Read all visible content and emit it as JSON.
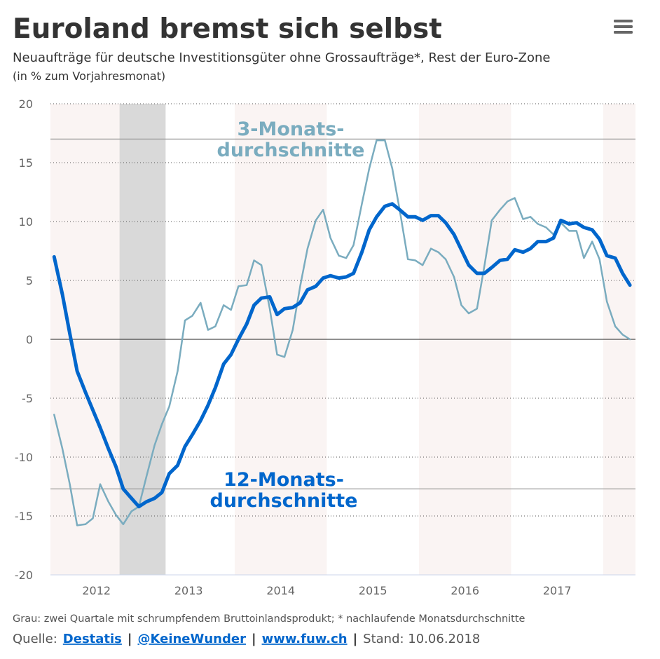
{
  "chart_data": {
    "type": "line",
    "title": "Euroland bremst sich selbst",
    "subtitle": "Neuaufträge für deutsche Investitionsgüter ohne Grossaufträge*, Rest der Euro-Zone",
    "y_label": "(in % zum Vorjahresmonat)",
    "x": [
      2012.04,
      2012.13,
      2012.21,
      2012.29,
      2012.38,
      2012.46,
      2012.54,
      2012.63,
      2012.71,
      2012.79,
      2012.88,
      2012.96,
      2013.04,
      2013.13,
      2013.21,
      2013.29,
      2013.38,
      2013.46,
      2013.54,
      2013.63,
      2013.71,
      2013.79,
      2013.88,
      2013.96,
      2014.04,
      2014.13,
      2014.21,
      2014.29,
      2014.38,
      2014.46,
      2014.54,
      2014.63,
      2014.71,
      2014.79,
      2014.88,
      2014.96,
      2015.04,
      2015.13,
      2015.21,
      2015.29,
      2015.38,
      2015.46,
      2015.54,
      2015.63,
      2015.71,
      2015.79,
      2015.88,
      2015.96,
      2016.04,
      2016.13,
      2016.21,
      2016.29,
      2016.38,
      2016.46,
      2016.54,
      2016.63,
      2016.71,
      2016.79,
      2016.88,
      2016.96,
      2017.04,
      2017.13,
      2017.21,
      2017.29,
      2017.38,
      2017.46,
      2017.54,
      2017.63,
      2017.71,
      2017.79,
      2017.88,
      2017.96,
      2018.04,
      2018.13,
      2018.21,
      2018.29
    ],
    "series": [
      {
        "label_lines": [
          "3-Monats-",
          "durchschnitte"
        ],
        "color": "#7aacbf",
        "width": 2.5,
        "values": [
          -6.4,
          -9.3,
          -12.3,
          -15.8,
          -15.7,
          -15.2,
          -12.3,
          -13.8,
          -14.9,
          -15.7,
          -14.6,
          -14.2,
          -11.7,
          -9.0,
          -7.2,
          -5.7,
          -2.7,
          1.6,
          2.0,
          3.1,
          0.8,
          1.1,
          2.9,
          2.5,
          4.5,
          4.6,
          6.7,
          6.3,
          2.6,
          -1.3,
          -1.5,
          0.8,
          4.5,
          7.7,
          10.1,
          11.0,
          8.6,
          7.1,
          6.9,
          8.0,
          11.5,
          14.5,
          16.9,
          16.9,
          14.5,
          11.0,
          6.8,
          6.7,
          6.3,
          7.7,
          7.4,
          6.8,
          5.3,
          2.9,
          2.2,
          2.6,
          6.2,
          10.1,
          11.0,
          11.7,
          12.0,
          10.2,
          10.4,
          9.8,
          9.5,
          8.9,
          9.9,
          9.2,
          9.2,
          6.9,
          8.3,
          6.8,
          3.2,
          1.1,
          0.4,
          0
        ]
      },
      {
        "label_lines": [
          "12-Monats-",
          "durchschnitte"
        ],
        "color": "#0066cc",
        "width": 5,
        "values": [
          7.0,
          3.8,
          0.5,
          -2.7,
          -4.5,
          -6.0,
          -7.5,
          -9.3,
          -10.8,
          -12.7,
          -13.5,
          -14.2,
          -13.8,
          -13.5,
          -13.0,
          -11.4,
          -10.7,
          -9.1,
          -8.1,
          -6.9,
          -5.6,
          -4.1,
          -2.1,
          -1.3,
          0,
          1.3,
          2.9,
          3.5,
          3.6,
          2.1,
          2.6,
          2.7,
          3.1,
          4.2,
          4.5,
          5.2,
          5.4,
          5.2,
          5.3,
          5.6,
          7.4,
          9.3,
          10.4,
          11.3,
          11.5,
          11.0,
          10.4,
          10.4,
          10.1,
          10.5,
          10.5,
          9.9,
          8.9,
          7.6,
          6.3,
          5.6,
          5.6,
          6.1,
          6.7,
          6.8,
          7.6,
          7.4,
          7.7,
          8.3,
          8.3,
          8.6,
          10.1,
          9.8,
          9.9,
          9.5,
          9.3,
          8.5,
          7.1,
          6.9,
          5.6,
          4.6
        ]
      }
    ],
    "xlim": [
      2012,
      2018.35
    ],
    "xticks": [
      {
        "value": 2012.5,
        "label": "2012"
      },
      {
        "value": 2013.5,
        "label": "2013"
      },
      {
        "value": 2014.5,
        "label": "2014"
      },
      {
        "value": 2015.5,
        "label": "2015"
      },
      {
        "value": 2016.5,
        "label": "2016"
      },
      {
        "value": 2017.5,
        "label": "2017"
      }
    ],
    "ylim": [
      -20,
      20
    ],
    "yticks": [
      20,
      15,
      10,
      5,
      0,
      -5,
      -10,
      -15,
      -20
    ],
    "grid": true,
    "shaded_years": [
      2012,
      2014,
      2016,
      2018
    ],
    "recession": [
      2012.75,
      2013.25
    ],
    "reference_lines": [
      17,
      -12.7
    ]
  },
  "footer": {
    "note": "Grau: zwei Quartale mit schrumpfendem Bruttoinlandsprodukt; * nachlaufende Monatsdurchschnitte",
    "source_label": "Quelle:",
    "links": [
      "Destatis",
      "@KeineWunder",
      "www.fuw.ch"
    ],
    "separator": "|",
    "stand": "Stand: 10.06.2018"
  }
}
